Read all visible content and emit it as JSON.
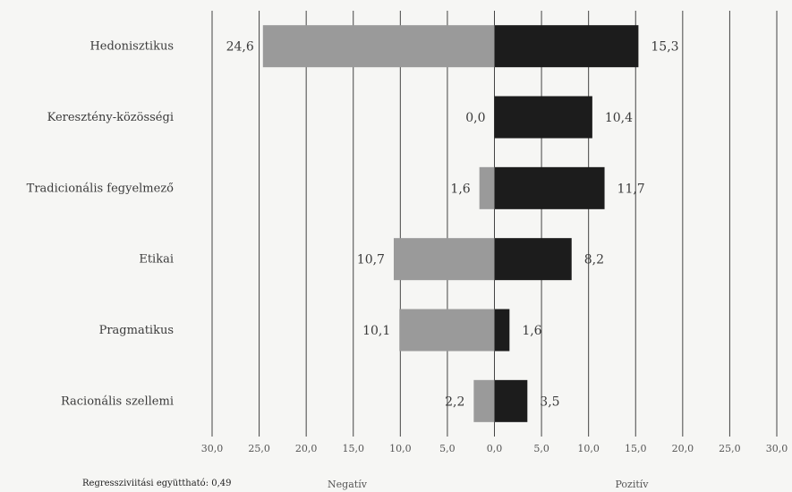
{
  "chart_data": {
    "type": "bar",
    "orientation": "horizontal-diverging",
    "categories": [
      "Hedonisztikus",
      "Keresztény-közösségi",
      "Tradicionális fegyelmező",
      "Etikai",
      "Pragmatikus",
      "Racionális szellemi"
    ],
    "series": [
      {
        "name": "",
        "side": "negative",
        "values": [
          24.6,
          0.0,
          1.6,
          10.7,
          10.1,
          2.2
        ]
      },
      {
        "name": "",
        "side": "positive",
        "values": [
          15.3,
          10.4,
          11.7,
          8.2,
          1.6,
          3.5
        ]
      }
    ],
    "value_labels": {
      "negative": [
        "24,6",
        "0,0",
        "1,6",
        "10,7",
        "10,1",
        "2,2"
      ],
      "positive": [
        "15,3",
        "10,4",
        "11,7",
        "8,2",
        "1,6",
        "3,5"
      ]
    },
    "xlim": [
      -30,
      30
    ],
    "x_ticks": [
      "30,0",
      "25,0",
      "20,0",
      "15,0",
      "10,0",
      "5,0",
      "0,0",
      "5,0",
      "10,0",
      "15,0",
      "20,0",
      "25,0",
      "30,0"
    ],
    "xlabel_negative": "Negatív",
    "xlabel_positive": "Pozitív",
    "grid": true,
    "colors": {
      "negative": "#9a9a9a",
      "positive": "#1c1c1c",
      "grid": "#444444"
    }
  },
  "footnote": "Regressziviitási együttható: 0,49"
}
